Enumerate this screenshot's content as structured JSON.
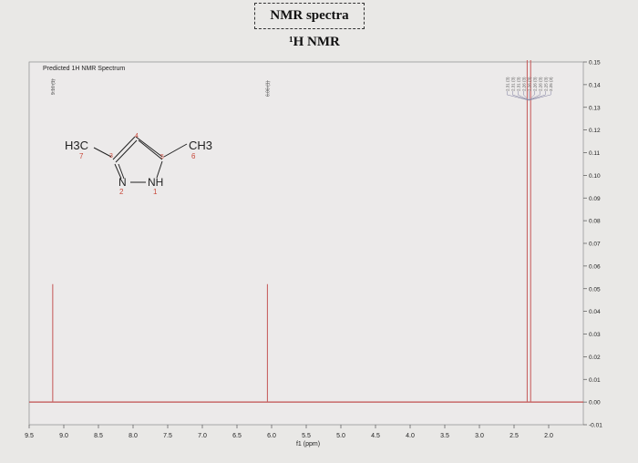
{
  "header": {
    "title": "NMR spectra",
    "subtitle": "¹H NMR"
  },
  "inset_label": "Predicted 1H NMR Spectrum",
  "peak_labels": [
    "9.16 (1)",
    "6.06 (1)"
  ],
  "multiplet_labels": [
    "2.31 (3)",
    "2.31 (3)",
    "2.31 (3)",
    "2.26 (3)",
    "2.26 (3)",
    "2.26 (3)",
    "2.26 (3)",
    "2.25 (3)",
    "2.25 (3)"
  ],
  "molecule": {
    "left_group": "H3C",
    "right_group": "CH3",
    "n2_label": "N",
    "nh_label": "NH",
    "atom_numbers": [
      "1",
      "2",
      "3",
      "4",
      "5",
      "6",
      "7"
    ]
  },
  "colors": {
    "peak": "#c86464",
    "baseline": "#c05050",
    "grid": "#c7c7c7",
    "text": "#222222"
  },
  "chart_data": {
    "type": "line",
    "xlabel": "f1 (ppm)",
    "ylabel": "",
    "xlim": [
      9.5,
      1.5
    ],
    "ylim": [
      -0.01,
      0.15
    ],
    "x_ticks": [
      9.5,
      9.0,
      8.5,
      8.0,
      7.5,
      7.0,
      6.5,
      6.0,
      5.5,
      5.0,
      4.5,
      4.0,
      3.5,
      3.0,
      2.5,
      2.0
    ],
    "x_tick_labels": [
      "9.5",
      "9.0",
      "8.5",
      "8.0",
      "7.5",
      "7.0",
      "6.5",
      "6.0",
      "5.5",
      "5.0",
      "4.5",
      "4.0",
      "3.5",
      "3.0",
      "2.5",
      "2.0"
    ],
    "y_ticks": [
      0.15,
      0.14,
      0.13,
      0.12,
      0.11,
      0.1,
      0.09,
      0.08,
      0.07,
      0.06,
      0.05,
      0.04,
      0.03,
      0.02,
      0.01,
      0.0,
      -0.01
    ],
    "y_tick_labels": [
      "0.15",
      "0.14",
      "0.13",
      "0.12",
      "0.11",
      "0.10",
      "0.09",
      "0.08",
      "0.07",
      "0.06",
      "0.05",
      "0.04",
      "0.03",
      "0.02",
      "0.01",
      "0.00",
      "-0.01"
    ],
    "grid": true,
    "baseline": 0.0,
    "peaks": [
      {
        "ppm": 9.16,
        "height": 0.052
      },
      {
        "ppm": 6.06,
        "height": 0.052
      },
      {
        "ppm": 2.26,
        "height": 0.152
      },
      {
        "ppm": 2.31,
        "height": 0.152
      }
    ]
  }
}
